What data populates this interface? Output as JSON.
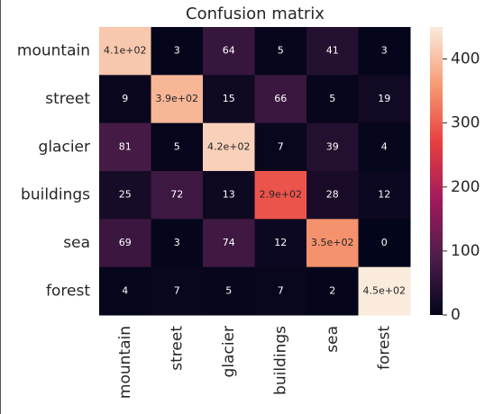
{
  "chart_data": {
    "type": "heatmap",
    "title": "Confusion matrix",
    "x_categories": [
      "mountain",
      "street",
      "glacier",
      "buildings",
      "sea",
      "forest"
    ],
    "y_categories": [
      "mountain",
      "street",
      "glacier",
      "buildings",
      "sea",
      "forest"
    ],
    "values": [
      [
        410,
        3,
        64,
        5,
        41,
        3
      ],
      [
        9,
        390,
        15,
        66,
        5,
        19
      ],
      [
        81,
        5,
        420,
        7,
        39,
        4
      ],
      [
        25,
        72,
        13,
        290,
        28,
        12
      ],
      [
        69,
        3,
        74,
        12,
        350,
        0
      ],
      [
        4,
        7,
        5,
        7,
        2,
        450
      ]
    ],
    "value_labels": [
      [
        "4.1e+02",
        "3",
        "64",
        "5",
        "41",
        "3"
      ],
      [
        "9",
        "3.9e+02",
        "15",
        "66",
        "5",
        "19"
      ],
      [
        "81",
        "5",
        "4.2e+02",
        "7",
        "39",
        "4"
      ],
      [
        "25",
        "72",
        "13",
        "2.9e+02",
        "28",
        "12"
      ],
      [
        "69",
        "3",
        "74",
        "12",
        "3.5e+02",
        "0"
      ],
      [
        "4",
        "7",
        "5",
        "7",
        "2",
        "4.5e+02"
      ]
    ],
    "colorscale": [
      "#03051a",
      "#4c1d4b",
      "#a11a5b",
      "#e83f3f",
      "#f69c73",
      "#faebdd"
    ],
    "clim": [
      0,
      450
    ],
    "cticks": [
      0,
      100,
      200,
      300,
      400
    ]
  }
}
